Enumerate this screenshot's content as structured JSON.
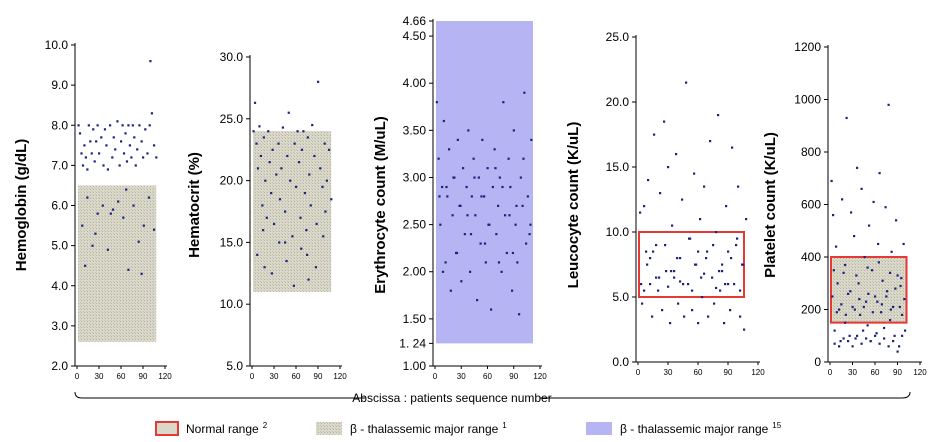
{
  "chart_data": [
    {
      "type": "scatter",
      "ylabel": "Hemoglobin (g/dL)",
      "ylim": [
        2.0,
        10.0
      ],
      "yticks": [
        "10.0",
        "9.0",
        "8.0",
        "7.0",
        "6.0",
        "5.0",
        "4.0",
        "3.0",
        "2.0"
      ],
      "xlim": [
        0,
        120
      ],
      "xticks": [
        "0",
        "30",
        "60",
        "90",
        "120"
      ],
      "beta_major_range": [
        2.6,
        6.5
      ],
      "x": [
        2,
        4,
        6,
        8,
        10,
        12,
        14,
        16,
        18,
        20,
        22,
        24,
        26,
        28,
        30,
        33,
        36,
        38,
        40,
        42,
        45,
        48,
        50,
        52,
        55,
        58,
        60,
        62,
        64,
        66,
        68,
        70,
        72,
        74,
        76,
        78,
        80,
        82,
        85,
        88,
        90,
        93,
        96,
        99,
        100,
        102,
        105,
        108,
        7,
        14,
        21,
        28,
        35,
        42,
        49,
        56,
        63,
        70,
        77,
        84,
        91,
        98,
        105,
        11,
        25,
        46,
        67,
        88
      ],
      "y": [
        8.0,
        7.8,
        7.3,
        7.0,
        7.5,
        7.2,
        6.9,
        8.0,
        7.6,
        7.3,
        7.9,
        7.1,
        7.6,
        8.0,
        7.3,
        7.7,
        7.0,
        7.9,
        7.5,
        6.9,
        8.0,
        7.2,
        7.7,
        7.4,
        8.1,
        7.0,
        7.6,
        8.0,
        7.3,
        7.8,
        7.1,
        8.0,
        7.5,
        7.2,
        8.0,
        7.7,
        7.0,
        7.4,
        8.0,
        7.6,
        7.2,
        7.9,
        7.3,
        8.0,
        9.6,
        8.3,
        7.5,
        7.2,
        5.5,
        6.2,
        5.0,
        5.8,
        6.0,
        4.9,
        5.9,
        6.1,
        5.7,
        4.4,
        6.0,
        5.1,
        5.5,
        6.2,
        5.4,
        4.5,
        5.3,
        5.8,
        6.4,
        4.3
      ]
    },
    {
      "type": "scatter",
      "ylabel": "Hematocrit (%)",
      "ylim": [
        5.0,
        30.0
      ],
      "yticks": [
        "30.0",
        "25.0",
        "20.0",
        "15.0",
        "10.0",
        "5.0"
      ],
      "xlim": [
        0,
        120
      ],
      "xticks": [
        "0",
        "30",
        "60",
        "90",
        "120"
      ],
      "beta_major_range": [
        11.0,
        24.0
      ],
      "x": [
        2,
        4,
        6,
        8,
        10,
        12,
        14,
        16,
        18,
        20,
        22,
        24,
        26,
        28,
        30,
        33,
        36,
        38,
        40,
        42,
        45,
        48,
        50,
        52,
        55,
        58,
        60,
        62,
        64,
        66,
        68,
        70,
        72,
        74,
        76,
        78,
        80,
        82,
        85,
        88,
        90,
        93,
        96,
        99,
        100,
        102,
        105,
        108,
        7,
        17,
        27,
        37,
        47,
        57,
        67,
        77,
        87,
        97,
        15,
        45,
        75
      ],
      "y": [
        24.0,
        26.3,
        23.0,
        21.0,
        24.4,
        22.0,
        18.0,
        23.5,
        20.0,
        17.0,
        24.0,
        21.5,
        19.0,
        22.5,
        16.5,
        20.5,
        23.0,
        18.5,
        21.0,
        24.3,
        17.5,
        22.0,
        25.5,
        20.0,
        15.5,
        23.0,
        19.5,
        24.0,
        21.5,
        17.0,
        22.5,
        24.0,
        19.0,
        16.0,
        23.5,
        20.5,
        18.0,
        24.5,
        22.0,
        16.5,
        28.0,
        21.0,
        19.5,
        23.0,
        17.5,
        20.0,
        22.5,
        18.5,
        14.0,
        13.0,
        12.5,
        15.0,
        13.5,
        11.5,
        14.5,
        12.0,
        13.0,
        15.5,
        16.0,
        15.0,
        14.0
      ]
    },
    {
      "type": "scatter",
      "ylabel": "Erythrocyte count (M/uL)",
      "ylim": [
        1.0,
        4.66
      ],
      "yticks": [
        "4.66",
        "4.50",
        "4.00",
        "3.50",
        "3.00",
        "2.50",
        "2.00",
        "1.50",
        "1. 24",
        "1.00"
      ],
      "xlim": [
        0,
        120
      ],
      "xticks": [
        "0",
        "30",
        "60",
        "90",
        "120"
      ],
      "beta_major_range": [
        1.24,
        4.66
      ],
      "x": [
        2,
        4,
        6,
        8,
        10,
        12,
        14,
        16,
        18,
        20,
        22,
        24,
        26,
        28,
        30,
        32,
        34,
        36,
        38,
        40,
        42,
        44,
        46,
        48,
        50,
        52,
        54,
        56,
        58,
        60,
        62,
        64,
        66,
        68,
        70,
        72,
        74,
        76,
        78,
        80,
        82,
        84,
        86,
        88,
        90,
        92,
        94,
        96,
        98,
        100,
        102,
        104,
        106,
        108,
        110,
        5,
        13,
        21,
        29,
        37,
        45,
        53,
        61,
        69,
        77,
        85,
        93,
        101,
        109,
        9,
        25,
        41,
        57,
        73,
        89
      ],
      "y": [
        3.8,
        3.2,
        2.5,
        2.9,
        3.6,
        2.1,
        2.8,
        3.3,
        1.8,
        2.6,
        3.0,
        2.2,
        3.4,
        2.7,
        1.9,
        3.1,
        2.4,
        2.9,
        3.5,
        2.0,
        2.8,
        3.2,
        2.6,
        1.7,
        3.0,
        2.3,
        3.4,
        2.8,
        2.1,
        3.1,
        2.5,
        1.6,
        2.9,
        3.3,
        2.4,
        2.7,
        3.0,
        2.0,
        3.8,
        2.6,
        2.2,
        3.2,
        2.9,
        1.8,
        3.5,
        2.5,
        2.1,
        1.55,
        3.0,
        2.7,
        3.9,
        2.3,
        2.8,
        2.4,
        3.4,
        2.8,
        2.9,
        3.0,
        2.7,
        2.6,
        3.0,
        2.8,
        2.5,
        3.1,
        2.9,
        2.6,
        2.7,
        3.2,
        2.5,
        2.0,
        2.2,
        2.4,
        2.3,
        2.1,
        2.2
      ]
    },
    {
      "type": "scatter",
      "ylabel": "Leucocyte count (K/uL)",
      "ylim": [
        0.0,
        25.0
      ],
      "yticks": [
        "25.0",
        "20.0",
        "15.0",
        "10.0",
        "5.0",
        "0.0"
      ],
      "xlim": [
        0,
        120
      ],
      "xticks": [
        "0",
        "30",
        "60",
        "90",
        "120"
      ],
      "normal_range": [
        5.0,
        10.0
      ],
      "x": [
        2,
        4,
        6,
        8,
        10,
        12,
        14,
        16,
        18,
        20,
        22,
        24,
        26,
        28,
        30,
        32,
        34,
        36,
        38,
        40,
        42,
        44,
        46,
        48,
        50,
        52,
        54,
        56,
        58,
        60,
        62,
        64,
        66,
        68,
        70,
        72,
        74,
        76,
        78,
        80,
        82,
        84,
        86,
        88,
        90,
        92,
        94,
        96,
        98,
        100,
        102,
        104,
        106,
        108,
        3,
        9,
        15,
        21,
        27,
        33,
        39,
        45,
        51,
        57,
        63,
        69,
        75,
        81,
        87,
        93,
        99,
        105,
        6,
        18,
        30,
        42,
        54,
        66,
        78,
        90,
        102,
        12,
        36,
        60,
        84
      ],
      "y": [
        11.5,
        4.5,
        12.0,
        8.5,
        14.0,
        6.0,
        3.5,
        17.5,
        9.0,
        5.5,
        13.0,
        4.0,
        18.5,
        7.0,
        15.0,
        3.0,
        10.5,
        6.5,
        16.0,
        4.5,
        8.0,
        12.5,
        3.5,
        21.5,
        6.0,
        9.5,
        4.0,
        14.5,
        7.5,
        3.0,
        11.0,
        5.0,
        13.5,
        8.0,
        3.5,
        17.0,
        6.5,
        4.5,
        10.0,
        19.0,
        5.5,
        7.0,
        3.0,
        12.0,
        8.5,
        4.0,
        16.5,
        6.0,
        9.0,
        13.5,
        3.5,
        7.5,
        2.5,
        11.0,
        6.0,
        7.5,
        8.5,
        6.5,
        9.0,
        7.0,
        8.0,
        6.0,
        9.5,
        7.5,
        6.5,
        8.5,
        9.0,
        7.0,
        6.0,
        8.0,
        9.5,
        7.5,
        5.5,
        6.5,
        5.8,
        6.2,
        5.5,
        6.8,
        5.7,
        6.0,
        5.5,
        8.0,
        7.0,
        8.5,
        7.5
      ]
    },
    {
      "type": "scatter",
      "ylabel": "Platelet count (K/uL)",
      "ylim": [
        0,
        1200
      ],
      "yticks": [
        "1200",
        "1000",
        "800",
        "600",
        "400",
        "200",
        "0"
      ],
      "xlim": [
        0,
        120
      ],
      "xticks": [
        "0",
        "30",
        "60",
        "90",
        "120"
      ],
      "normal_range": [
        150,
        400
      ],
      "beta_major_range": [
        150,
        400
      ],
      "x": [
        2,
        4,
        6,
        8,
        10,
        12,
        14,
        16,
        18,
        20,
        22,
        24,
        26,
        28,
        30,
        32,
        34,
        36,
        38,
        40,
        42,
        44,
        46,
        48,
        50,
        52,
        54,
        56,
        58,
        60,
        62,
        64,
        66,
        68,
        70,
        72,
        74,
        76,
        78,
        80,
        82,
        84,
        86,
        88,
        90,
        92,
        94,
        96,
        98,
        100,
        3,
        9,
        15,
        21,
        27,
        33,
        39,
        45,
        51,
        57,
        63,
        69,
        75,
        81,
        87,
        93,
        99,
        6,
        12,
        18,
        24,
        30,
        36,
        42,
        48,
        54,
        60,
        66,
        72,
        78,
        84,
        90,
        96,
        5,
        20,
        35,
        50,
        65,
        80,
        95
      ],
      "y": [
        690,
        560,
        120,
        440,
        300,
        200,
        80,
        620,
        340,
        150,
        930,
        260,
        100,
        570,
        210,
        480,
        90,
        740,
        300,
        180,
        660,
        120,
        400,
        230,
        140,
        520,
        80,
        350,
        610,
        250,
        110,
        450,
        720,
        190,
        310,
        130,
        590,
        270,
        980,
        160,
        420,
        210,
        100,
        540,
        330,
        60,
        290,
        180,
        450,
        120,
        250,
        190,
        220,
        180,
        270,
        200,
        240,
        210,
        260,
        190,
        230,
        220,
        250,
        200,
        280,
        210,
        240,
        70,
        60,
        90,
        80,
        60,
        100,
        70,
        90,
        80,
        100,
        70,
        90,
        60,
        80,
        40,
        100,
        350,
        370,
        330,
        360,
        380,
        340,
        320
      ]
    }
  ],
  "xaxis_caption": "Abscissa : patients sequence number",
  "legend": {
    "normal": {
      "label": "Normal range",
      "ref": "2"
    },
    "beta1": {
      "label": "β - thalassemic major range",
      "ref": "1"
    },
    "beta15": {
      "label": "β - thalassemic major range",
      "ref": "15"
    }
  },
  "colors": {
    "point": "#1a237e",
    "normal_box": "#e53935",
    "beta_fill": "#d9d8c9",
    "beta15_fill": "#b7b4f4"
  }
}
